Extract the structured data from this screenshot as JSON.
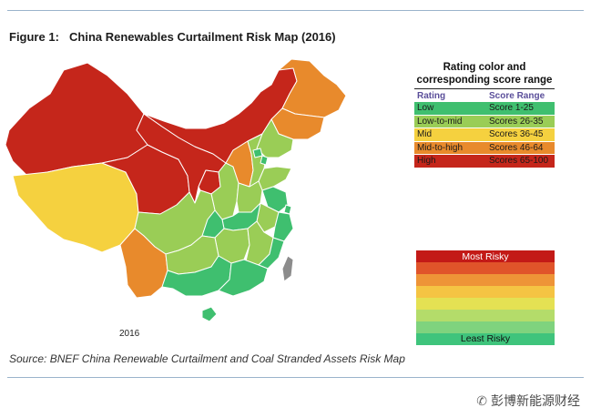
{
  "figure": {
    "number": "Figure 1:",
    "title": "China Renewables Curtailment Risk Map (2016)"
  },
  "map": {
    "year": "2016",
    "regions": [
      {
        "name": "Xinjiang",
        "rating": "High"
      },
      {
        "name": "Tibet",
        "rating": "Mid"
      },
      {
        "name": "Qinghai",
        "rating": "High"
      },
      {
        "name": "Gansu",
        "rating": "High"
      },
      {
        "name": "Inner Mongolia",
        "rating": "High"
      },
      {
        "name": "Heilongjiang",
        "rating": "Mid-to-high"
      },
      {
        "name": "Jilin",
        "rating": "Mid-to-high"
      },
      {
        "name": "Liaoning",
        "rating": "Low-to-mid"
      },
      {
        "name": "Ningxia",
        "rating": "High"
      },
      {
        "name": "Shaanxi",
        "rating": "Low-to-mid"
      },
      {
        "name": "Shanxi",
        "rating": "Mid-to-high"
      },
      {
        "name": "Hebei",
        "rating": "Low-to-mid"
      },
      {
        "name": "Beijing",
        "rating": "Low"
      },
      {
        "name": "Tianjin",
        "rating": "Low"
      },
      {
        "name": "Shandong",
        "rating": "Low-to-mid"
      },
      {
        "name": "Henan",
        "rating": "Low-to-mid"
      },
      {
        "name": "Jiangsu",
        "rating": "Low"
      },
      {
        "name": "Anhui",
        "rating": "Low-to-mid"
      },
      {
        "name": "Shanghai",
        "rating": "Low"
      },
      {
        "name": "Zhejiang",
        "rating": "Low"
      },
      {
        "name": "Hubei",
        "rating": "Low"
      },
      {
        "name": "Sichuan",
        "rating": "Low-to-mid"
      },
      {
        "name": "Chongqing",
        "rating": "Low"
      },
      {
        "name": "Hunan",
        "rating": "Low-to-mid"
      },
      {
        "name": "Jiangxi",
        "rating": "Low-to-mid"
      },
      {
        "name": "Fujian",
        "rating": "Low"
      },
      {
        "name": "Yunnan",
        "rating": "Mid-to-high"
      },
      {
        "name": "Guizhou",
        "rating": "Low-to-mid"
      },
      {
        "name": "Guangxi",
        "rating": "Low"
      },
      {
        "name": "Guangdong",
        "rating": "Low"
      },
      {
        "name": "Hainan",
        "rating": "Low"
      },
      {
        "name": "Taiwan",
        "rating": "No data"
      }
    ]
  },
  "legend_table": {
    "title_line1": "Rating color and",
    "title_line2": "corresponding score range",
    "col_rating": "Rating",
    "col_score": "Score Range",
    "rows": [
      {
        "rating": "Low",
        "score": "Score 1-25",
        "color": "#3fbf6f"
      },
      {
        "rating": "Low-to-mid",
        "score": "Scores 26-35",
        "color": "#9acd56"
      },
      {
        "rating": "Mid",
        "score": "Scores 36-45",
        "color": "#f5d13f"
      },
      {
        "rating": "Mid-to-high",
        "score": "Scores 46-64",
        "color": "#e88a2c"
      },
      {
        "rating": "High",
        "score": "Scores 65-100",
        "color": "#c5261b"
      }
    ]
  },
  "risk_scale": {
    "top_label": "Most Risky",
    "bottom_label": "Least Risky",
    "bands": [
      "#c31a17",
      "#e0542a",
      "#ee9437",
      "#f5c443",
      "#e4e153",
      "#b4dc6a",
      "#7fd37e",
      "#3fc47c"
    ]
  },
  "source": "Source: BNEF China Renewable Curtailment and Coal Stranded Assets Risk Map",
  "watermark": {
    "text": "彭博新能源财经",
    "icon": "wechat-icon"
  },
  "colors": {
    "rule": "#9ab3cc",
    "no_data": "#8c8c8c"
  }
}
